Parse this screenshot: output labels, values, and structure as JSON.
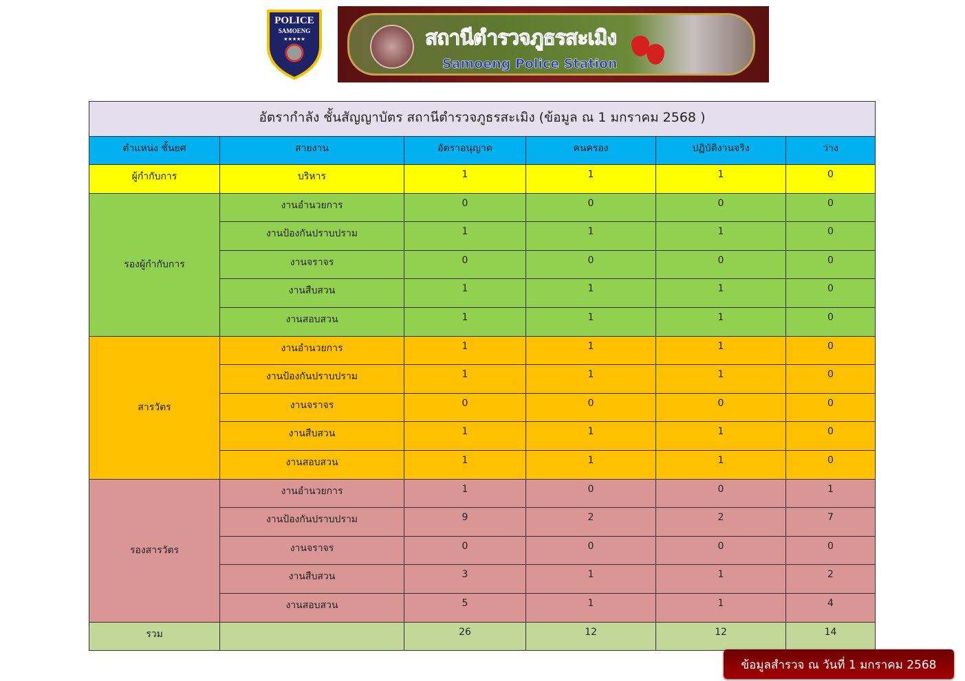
{
  "logo": {
    "line1": "POLICE",
    "line2": "SAMOENG",
    "stars": "★★★★★"
  },
  "banner": {
    "thai": "สถานีตำรวจภูธรสะเมิง",
    "english": "Samoeng Police Station"
  },
  "table": {
    "title": "อัตรากำลัง ชั้นสัญญาบัตร สถานีตำรวจภูธรสะเมิง (ข้อมูล ณ 1 มกราคม 2568 )",
    "headers": [
      "ตำแหน่ง ชั้นยศ",
      "สายงาน",
      "อัตราอนุญาต",
      "คนครอง",
      "ปฏิบัติงานจริง",
      "ว่าง"
    ],
    "groups": [
      {
        "position": "ผู้กำกับการ",
        "color": "#ffff00",
        "rows": [
          [
            "บริหาร",
            "1",
            "1",
            "1",
            "0"
          ]
        ]
      },
      {
        "position": "รองผู้กำกับการ",
        "color": "#92d050",
        "rows": [
          [
            "งานอำนวยการ",
            "0",
            "0",
            "0",
            "0"
          ],
          [
            "งานป้องกันปราบปราม",
            "1",
            "1",
            "1",
            "0"
          ],
          [
            "งานจราจร",
            "0",
            "0",
            "0",
            "0"
          ],
          [
            "งานสืบสวน",
            "1",
            "1",
            "1",
            "0"
          ],
          [
            "งานสอบสวน",
            "1",
            "1",
            "1",
            "0"
          ]
        ]
      },
      {
        "position": "สารวัตร",
        "color": "#ffc000",
        "rows": [
          [
            "งานอำนวยการ",
            "1",
            "1",
            "1",
            "0"
          ],
          [
            "งานป้องกันปราบปราม",
            "1",
            "1",
            "1",
            "0"
          ],
          [
            "งานจราจร",
            "0",
            "0",
            "0",
            "0"
          ],
          [
            "งานสืบสวน",
            "1",
            "1",
            "1",
            "0"
          ],
          [
            "งานสอบสวน",
            "1",
            "1",
            "1",
            "0"
          ]
        ]
      },
      {
        "position": "รองสารวัตร",
        "color": "#da9694",
        "rows": [
          [
            "งานอำนวยการ",
            "1",
            "0",
            "0",
            "1"
          ],
          [
            "งานป้องกันปราบปราม",
            "9",
            "2",
            "2",
            "7"
          ],
          [
            "งานจราจร",
            "0",
            "0",
            "0",
            "0"
          ],
          [
            "งานสืบสวน",
            "3",
            "1",
            "1",
            "2"
          ],
          [
            "งานสอบสวน",
            "5",
            "1",
            "1",
            "4"
          ]
        ]
      }
    ],
    "total": {
      "label": "รวม",
      "line": "",
      "values": [
        "26",
        "12",
        "12",
        "14"
      ]
    }
  },
  "badge": "ข้อมูลสำรวจ ณ วันที่ 1 มกราคม 2568"
}
